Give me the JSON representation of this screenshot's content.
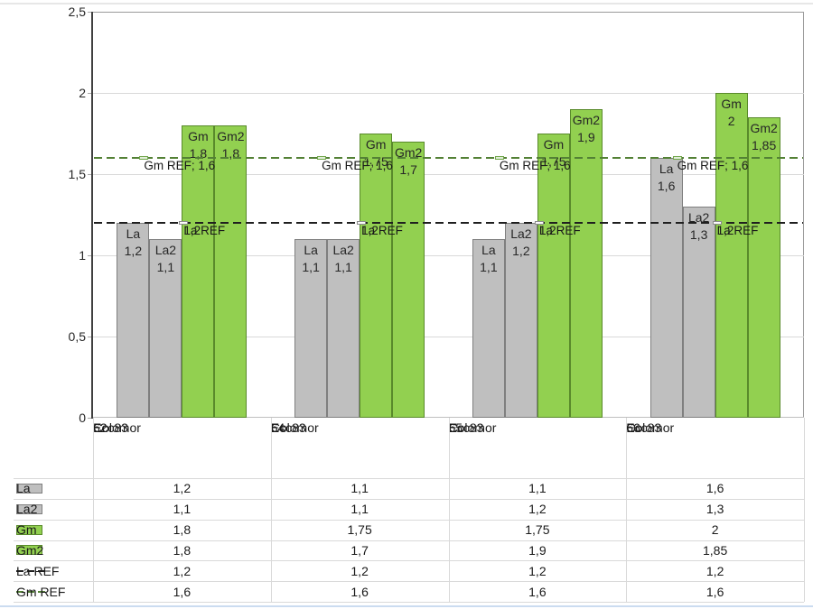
{
  "chart_data": {
    "type": "bar",
    "title": "",
    "categories": [
      "62",
      "64",
      "65",
      "66"
    ],
    "category_sublabels": [
      "Ecc83",
      "Colomor"
    ],
    "y_axis": {
      "ticks": [
        "0",
        "0,5",
        "1",
        "1,5",
        "2",
        "2,5"
      ],
      "min": 0,
      "max": 2.5,
      "step": 0.5,
      "grid": true
    },
    "series": [
      {
        "name": "La",
        "type": "bar",
        "fill": "#BFBFBF",
        "border": "#7F7F7F",
        "values": [
          1.2,
          1.1,
          1.1,
          1.6
        ],
        "display": [
          "1,2",
          "1,1",
          "1,1",
          "1,6"
        ]
      },
      {
        "name": "La2",
        "type": "bar",
        "fill": "#BFBFBF",
        "border": "#7F7F7F",
        "values": [
          1.1,
          1.1,
          1.2,
          1.3
        ],
        "display": [
          "1,1",
          "1,1",
          "1,2",
          "1,3"
        ]
      },
      {
        "name": "Gm",
        "type": "bar",
        "fill": "#92D050",
        "border": "#598A2B",
        "values": [
          1.8,
          1.75,
          1.75,
          2
        ],
        "display": [
          "1,8",
          "1,75",
          "1,75",
          "2"
        ]
      },
      {
        "name": "Gm2",
        "type": "bar",
        "fill": "#92D050",
        "border": "#598A2B",
        "values": [
          1.8,
          1.7,
          1.9,
          1.85
        ],
        "display": [
          "1,8",
          "1,7",
          "1,9",
          "1,85"
        ]
      }
    ],
    "ref_series": [
      {
        "name": "La REF",
        "value": 1.2,
        "display": [
          "1,2",
          "1,2",
          "1,2",
          "1,2"
        ],
        "line_color": "#1f1f1f",
        "label_lines": [
          "La REF",
          "1,2"
        ],
        "box_bg": "#fbfbfb",
        "box_border": "#8c8c8c"
      },
      {
        "name": "Gm REF",
        "value": 1.6,
        "display": [
          "1,6",
          "1,6",
          "1,6",
          "1,6"
        ],
        "line_color": "#538135",
        "label_lines": [
          "Gm REF; 1,6"
        ],
        "box_bg": "#e2efda",
        "box_border": "#72a74c"
      }
    ],
    "legend_position": "table-left",
    "table_row_order": [
      "La",
      "La2",
      "Gm",
      "Gm2",
      "La REF",
      "Gm REF"
    ]
  },
  "colors": {
    "gridline": "#d9d9d9",
    "axis_line": "#404040",
    "plot_border": "#9b9b9b",
    "window_bottom_edge": "#cbdcf0",
    "window_top_edge": "#e7e7e7"
  }
}
